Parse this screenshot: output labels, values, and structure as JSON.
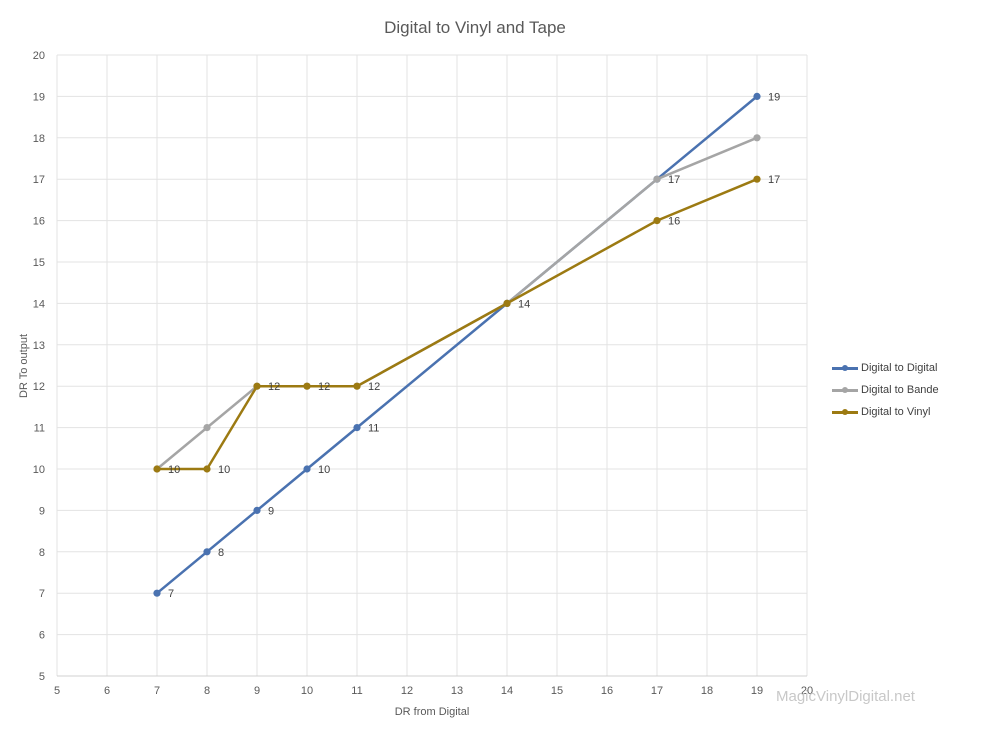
{
  "chart_data": {
    "type": "line",
    "title": "Digital to Vinyl and Tape",
    "xlabel": "DR from Digital",
    "ylabel": "DR To output",
    "xlim": [
      5,
      20
    ],
    "ylim": [
      5,
      20
    ],
    "xticks": [
      5,
      6,
      7,
      8,
      9,
      10,
      11,
      12,
      13,
      14,
      15,
      16,
      17,
      18,
      19,
      20
    ],
    "yticks": [
      5,
      6,
      7,
      8,
      9,
      10,
      11,
      12,
      13,
      14,
      15,
      16,
      17,
      18,
      19,
      20
    ],
    "grid": true,
    "legend_position": "right",
    "x": [
      7,
      8,
      9,
      10,
      11,
      14,
      17,
      19
    ],
    "series": [
      {
        "name": "Digital to Digital",
        "color": "#4a72b0",
        "values": [
          7,
          8,
          9,
          10,
          11,
          14,
          17,
          19
        ],
        "labels": [
          "7",
          "8",
          "9",
          "10",
          "11",
          "",
          "",
          "19"
        ]
      },
      {
        "name": "Digital to Bande",
        "color": "#a5a5a5",
        "values": [
          10,
          11,
          12,
          12,
          12,
          14,
          17,
          18
        ],
        "labels": [
          "",
          "",
          "",
          "",
          "",
          "",
          "17",
          ""
        ]
      },
      {
        "name": "Digital to Vinyl",
        "color": "#9c7a12",
        "values": [
          10,
          10,
          12,
          12,
          12,
          14,
          16,
          17
        ],
        "labels": [
          "10",
          "10",
          "12",
          "12",
          "12",
          "14",
          "16",
          "17"
        ]
      }
    ]
  },
  "watermark": "MagicVinylDigital.net"
}
